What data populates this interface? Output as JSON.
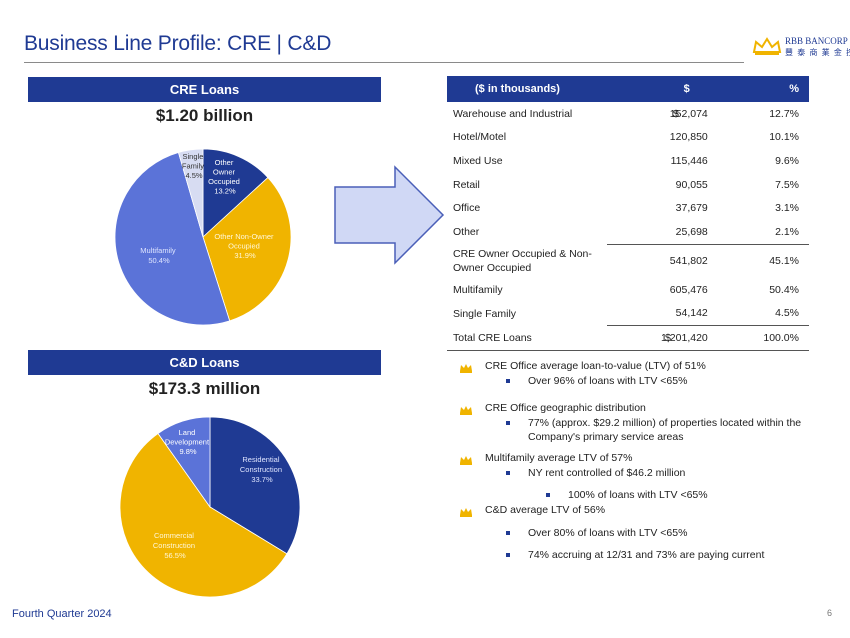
{
  "header": {
    "title": "Business Line Profile: CRE | C&D",
    "logo_name": "RBB BANCORP",
    "logo_cn": "豐 泰 商 業 金 控"
  },
  "cre_panel": {
    "band_label": "CRE Loans",
    "total": "$1.20 billion"
  },
  "cd_panel": {
    "band_label": "C&D Loans",
    "total": "$173.3 million"
  },
  "chart_data": [
    {
      "type": "pie",
      "title": "CRE Loans",
      "slices": [
        {
          "name": "Other Owner Occupied",
          "value": 13.2,
          "label": "13.2%",
          "color": "#1f3a93"
        },
        {
          "name": "Other Non-Owner Occupied",
          "value": 31.9,
          "label": "31.9%",
          "color": "#f0b400"
        },
        {
          "name": "Multifamily",
          "value": 50.4,
          "label": "50.4%",
          "color": "#5b73d8"
        },
        {
          "name": "Single Family",
          "value": 4.5,
          "label": "4.5%",
          "color": "#d7dcf2"
        }
      ]
    },
    {
      "type": "pie",
      "title": "C&D Loans",
      "slices": [
        {
          "name": "Residential Construction",
          "value": 33.7,
          "label": "33.7%",
          "color": "#1f3a93"
        },
        {
          "name": "Commercial Construction",
          "value": 56.5,
          "label": "56.5%",
          "color": "#f0b400"
        },
        {
          "name": "Land Development",
          "value": 9.8,
          "label": "9.8%",
          "color": "#5b73d8"
        }
      ]
    }
  ],
  "pie_labels": {
    "cre": {
      "ooo": [
        "Other",
        "Owner",
        "Occupied",
        "13.2%"
      ],
      "nooo": [
        "Other Non-Owner",
        "Occupied",
        "31.9%"
      ],
      "mf": [
        "Multifamily",
        "50.4%"
      ],
      "sf": [
        "Single",
        "Family",
        "4.5%"
      ]
    },
    "cd": {
      "res": [
        "Residential",
        "Construction",
        "33.7%"
      ],
      "com": [
        "Commercial",
        "Construction",
        "56.5%"
      ],
      "land": [
        "Land",
        "Development",
        "9.8%"
      ]
    }
  },
  "table": {
    "headers": [
      "($ in thousands)",
      "$",
      "%"
    ],
    "rows": [
      {
        "label": "Warehouse and Industrial",
        "dollar": "$",
        "amount": "152,074",
        "pct": "12.7%"
      },
      {
        "label": "Hotel/Motel",
        "dollar": "",
        "amount": "120,850",
        "pct": "10.1%"
      },
      {
        "label": "Mixed Use",
        "dollar": "",
        "amount": "115,446",
        "pct": "9.6%"
      },
      {
        "label": "Retail",
        "dollar": "",
        "amount": "90,055",
        "pct": "7.5%"
      },
      {
        "label": "Office",
        "dollar": "",
        "amount": "37,679",
        "pct": "3.1%"
      },
      {
        "label": "Other",
        "dollar": "",
        "amount": "25,698",
        "pct": "2.1%"
      },
      {
        "label": "CRE Owner Occupied & Non-Owner Occupied",
        "dollar": "",
        "amount": "541,802",
        "pct": "45.1%"
      },
      {
        "label": "Multifamily",
        "dollar": "",
        "amount": "605,476",
        "pct": "50.4%"
      },
      {
        "label": "Single Family",
        "dollar": "",
        "amount": "54,142",
        "pct": "4.5%"
      },
      {
        "label": "Total CRE Loans",
        "dollar": "$",
        "amount": "1,201,420",
        "pct": "100.0%"
      }
    ]
  },
  "bullets": [
    {
      "text": "CRE Office average loan-to-value (LTV) of 51%",
      "subs": [
        "Over 96% of loans with LTV <65%"
      ]
    },
    {
      "text": "CRE Office geographic distribution",
      "subs": [
        "77% (approx. $29.2 million) of properties located within the Company's primary service areas"
      ]
    },
    {
      "text": "Multifamily average LTV of 57%",
      "subs": [
        "NY rent controlled of $46.2 million",
        "100% of loans with LTV <65%"
      ]
    },
    {
      "text": "C&D average LTV of 56%",
      "subs": [
        "Over 80% of loans with LTV <65%",
        "74% accruing at 12/31 and 73% are paying current"
      ]
    }
  ],
  "footer": {
    "period": "Fourth Quarter 2024",
    "page": "6"
  }
}
